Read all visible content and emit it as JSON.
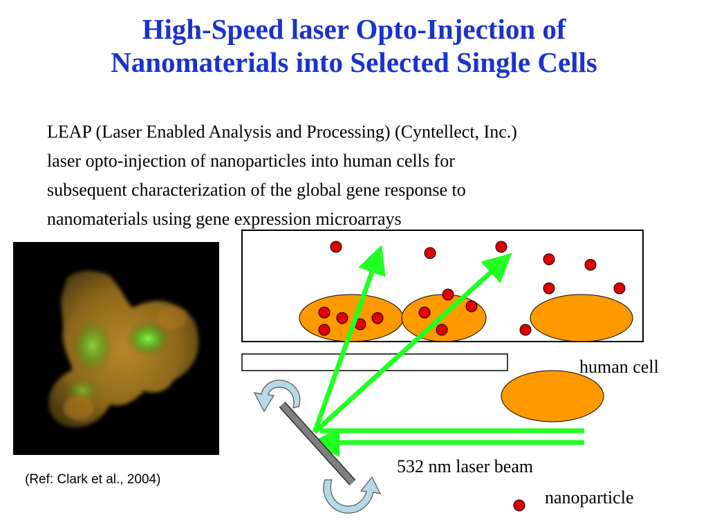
{
  "slide": {
    "title_line1": "High-Speed laser Opto-Injection of",
    "title_line2": "Nanomaterials into Selected Single Cells",
    "description_lines": [
      "LEAP (Laser Enabled Analysis and Processing) (Cyntellect, Inc.)",
      "laser opto-injection of nanoparticles into human cells for",
      "subsequent characterization of the global gene response to",
      "nanomaterials using gene expression microarrays"
    ],
    "reference": "(Ref:  Clark et al., 2004)"
  },
  "diagram": {
    "legend_human_cell": "human cell",
    "legend_laser": "532 nm laser beam",
    "legend_nanoparticle": "nanoparticle"
  },
  "colors": {
    "title": "#1a33cc",
    "cell_fill": "#ff9900",
    "nanoparticle": "#e00000",
    "laser": "#22ff22",
    "rotate_arrow": "#b7d8e6",
    "mirror": "#808080"
  }
}
